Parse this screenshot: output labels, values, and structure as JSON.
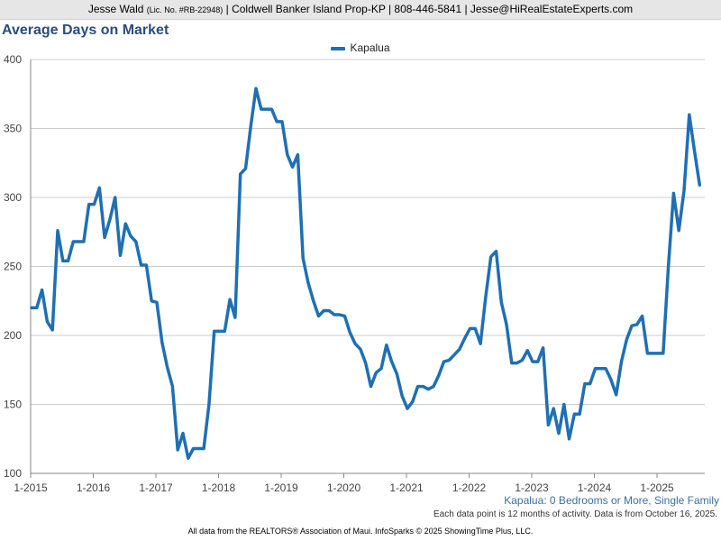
{
  "header": {
    "agent": "Jesse Wald",
    "license": "(Lic. No. #RB-22948)",
    "rest": "| Coldwell Banker Island Prop-KP | 808-446-5841 | Jesse@HiRealEstateExperts.com"
  },
  "footer": {
    "subtitle": "Kapalua: 0 Bedrooms or More, Single Family",
    "note": "Each data point is 12 months of activity. Data is from October 16, 2025.",
    "credits": "All data from the REALTORS® Association of Maui. InfoSparks © 2025 ShowingTime Plus, LLC."
  },
  "colors": {
    "series": "#1f6fb4",
    "grid": "#cccccc",
    "title": "#2b4c7e"
  },
  "chart_data": {
    "type": "line",
    "title": "Average Days on Market",
    "legend_position": "top-center",
    "grid": true,
    "ylim": [
      100,
      400
    ],
    "yticks": [
      100,
      150,
      200,
      250,
      300,
      350,
      400
    ],
    "xticks": [
      "1-2015",
      "1-2016",
      "1-2017",
      "1-2018",
      "1-2019",
      "1-2020",
      "1-2021",
      "1-2022",
      "1-2023",
      "1-2024",
      "1-2025"
    ],
    "x_start": "2015-01",
    "x_end": "2025-09",
    "series": [
      {
        "name": "Kapalua",
        "values": [
          220,
          220,
          233,
          210,
          204,
          276,
          254,
          254,
          268,
          268,
          268,
          295,
          295,
          307,
          271,
          284,
          300,
          258,
          281,
          272,
          268,
          251,
          251,
          225,
          224,
          195,
          177,
          163,
          117,
          129,
          111,
          118,
          118,
          118,
          150,
          203,
          203,
          203,
          226,
          213,
          317,
          321,
          352,
          379,
          364,
          364,
          364,
          355,
          355,
          331,
          322,
          331,
          256,
          238,
          225,
          214,
          218,
          218,
          215,
          215,
          214,
          202,
          194,
          190,
          180,
          163,
          173,
          176,
          193,
          181,
          172,
          156,
          147,
          152,
          163,
          163,
          161,
          163,
          171,
          181,
          182,
          186,
          190,
          198,
          205,
          205,
          194,
          228,
          257,
          261,
          224,
          208,
          180,
          180,
          182,
          189,
          181,
          181,
          191,
          135,
          147,
          129,
          150,
          125,
          143,
          143,
          165,
          165,
          176,
          176,
          176,
          168,
          157,
          181,
          197,
          207,
          208,
          214,
          187,
          187,
          187,
          187,
          250,
          303,
          276,
          305,
          360,
          334,
          309
        ]
      }
    ]
  }
}
